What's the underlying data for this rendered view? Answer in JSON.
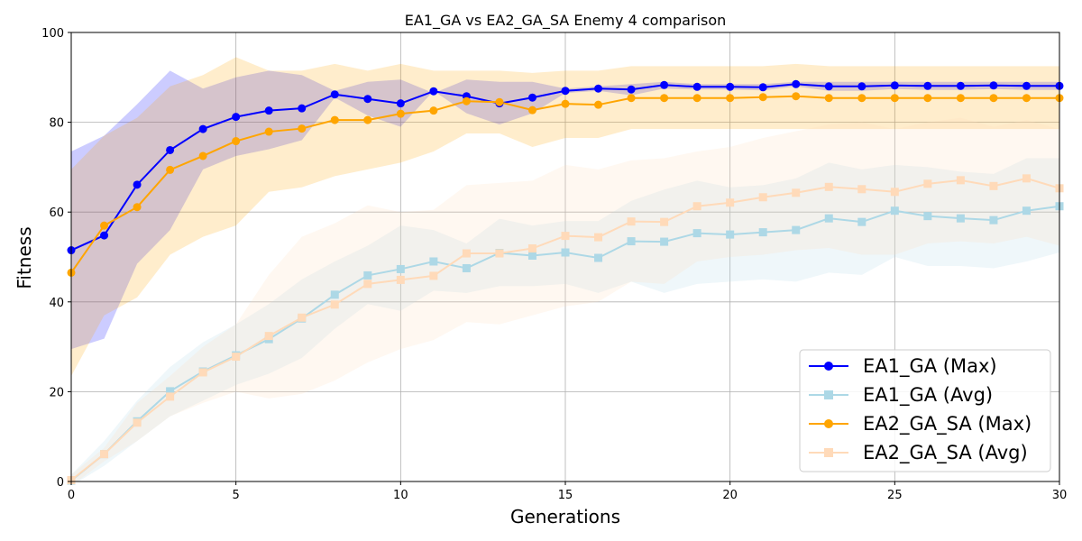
{
  "chart_data": {
    "type": "line",
    "title": "EA1_GA vs EA2_GA_SA Enemy 4 comparison",
    "xlabel": "Generations",
    "ylabel": "Fitness",
    "xlim": [
      0,
      30
    ],
    "ylim": [
      0,
      100
    ],
    "xticks": [
      0,
      5,
      10,
      15,
      20,
      25,
      30
    ],
    "yticks": [
      0,
      20,
      40,
      60,
      80,
      100
    ],
    "grid": true,
    "legend_position": "bottom-right",
    "x": [
      0,
      1,
      2,
      3,
      4,
      5,
      6,
      7,
      8,
      9,
      10,
      11,
      12,
      13,
      14,
      15,
      16,
      17,
      18,
      19,
      20,
      21,
      22,
      23,
      24,
      25,
      26,
      27,
      28,
      29,
      30
    ],
    "series": [
      {
        "name": "EA1_GA (Max)",
        "color": "#0000ff",
        "marker": "circle",
        "values": [
          51.5,
          54.8,
          66.1,
          73.8,
          78.5,
          81.2,
          82.6,
          83.1,
          86.2,
          85.2,
          84.2,
          86.9,
          85.8,
          84.2,
          85.5,
          87.0,
          87.5,
          87.3,
          88.3,
          87.9,
          87.9,
          87.8,
          88.5,
          88.0,
          88.0,
          88.2,
          88.1,
          88.1,
          88.2,
          88.1,
          88.1
        ],
        "band_upper": [
          73.5,
          77.0,
          84.0,
          91.5,
          87.5,
          90.0,
          91.5,
          90.5,
          87.0,
          89.0,
          89.5,
          86.5,
          89.5,
          89.0,
          89.0,
          87.5,
          88.0,
          88.5,
          89.0,
          88.5,
          88.5,
          88.5,
          89.0,
          89.0,
          89.0,
          89.0,
          89.0,
          89.0,
          89.0,
          89.0,
          89.0
        ],
        "band_lower": [
          29.5,
          31.8,
          48.5,
          56.0,
          69.5,
          72.5,
          74.0,
          76.0,
          85.5,
          81.5,
          79.0,
          87.0,
          82.0,
          79.5,
          82.0,
          86.5,
          87.0,
          86.0,
          87.5,
          87.3,
          87.3,
          87.1,
          88.0,
          87.0,
          87.0,
          87.4,
          87.2,
          87.2,
          87.4,
          87.2,
          87.2
        ],
        "band_color": "#0000ff",
        "band_opacity": 0.2
      },
      {
        "name": "EA1_GA (Avg)",
        "color": "#add8e6",
        "marker": "square",
        "values": [
          0.2,
          6.1,
          13.4,
          20.1,
          24.5,
          28.1,
          31.7,
          36.3,
          41.6,
          45.9,
          47.3,
          49.0,
          47.5,
          50.9,
          50.3,
          51.0,
          49.8,
          53.5,
          53.4,
          55.3,
          55.0,
          55.5,
          56.0,
          58.6,
          57.8,
          60.3,
          59.1,
          58.6,
          58.2,
          60.3,
          61.3
        ],
        "band_upper": [
          1.5,
          9.0,
          18.0,
          25.5,
          31.0,
          35.0,
          39.5,
          45.0,
          49.0,
          52.5,
          57.0,
          56.0,
          53.0,
          58.5,
          57.0,
          58.0,
          58.0,
          62.5,
          65.0,
          67.0,
          65.5,
          66.0,
          67.5,
          71.0,
          69.5,
          70.5,
          70.0,
          69.0,
          68.5,
          72.0,
          72.0
        ],
        "band_lower": [
          -1.0,
          3.5,
          9.0,
          14.5,
          18.0,
          21.5,
          24.0,
          27.5,
          34.0,
          39.5,
          38.0,
          42.5,
          42.0,
          43.5,
          43.5,
          44.0,
          42.0,
          44.5,
          42.0,
          44.0,
          44.5,
          45.0,
          44.5,
          46.5,
          46.0,
          50.0,
          48.0,
          48.0,
          47.5,
          49.0,
          51.0
        ],
        "band_color": "#add8e6",
        "band_opacity": 0.2
      },
      {
        "name": "EA2_GA_SA (Max)",
        "color": "#ffa500",
        "marker": "circle",
        "values": [
          46.5,
          57.0,
          61.1,
          69.4,
          72.5,
          75.8,
          77.9,
          78.6,
          80.5,
          80.5,
          81.9,
          82.6,
          84.7,
          84.5,
          82.7,
          84.1,
          83.9,
          85.4,
          85.4,
          85.4,
          85.4,
          85.6,
          85.8,
          85.4,
          85.4,
          85.4,
          85.4,
          85.4,
          85.4,
          85.4,
          85.4
        ],
        "band_upper": [
          69.5,
          77.0,
          81.0,
          88.0,
          90.5,
          94.5,
          91.5,
          91.5,
          93.0,
          91.5,
          93.0,
          91.5,
          91.5,
          91.5,
          91.0,
          91.5,
          91.5,
          92.5,
          92.5,
          92.5,
          92.5,
          92.5,
          93.0,
          92.5,
          92.5,
          92.5,
          92.5,
          92.5,
          92.5,
          92.5,
          92.5
        ],
        "band_lower": [
          23.5,
          37.0,
          41.0,
          50.5,
          54.5,
          57.0,
          64.5,
          65.5,
          68.0,
          69.5,
          71.0,
          73.5,
          77.5,
          77.5,
          74.5,
          76.5,
          76.5,
          78.5,
          78.5,
          78.5,
          78.5,
          78.5,
          78.5,
          78.5,
          78.5,
          78.5,
          78.5,
          78.5,
          78.5,
          78.5,
          78.5
        ],
        "band_color": "#ffa500",
        "band_opacity": 0.2
      },
      {
        "name": "EA2_GA_SA (Avg)",
        "color": "#ffdab9",
        "marker": "square",
        "values": [
          0.3,
          6.1,
          13.1,
          18.9,
          24.3,
          27.8,
          32.4,
          36.5,
          39.4,
          44.0,
          44.9,
          45.8,
          50.8,
          50.8,
          51.9,
          54.7,
          54.4,
          57.9,
          57.8,
          61.3,
          62.1,
          63.3,
          64.3,
          65.6,
          65.1,
          64.5,
          66.3,
          67.1,
          65.8,
          67.5,
          65.3
        ],
        "band_upper": [
          1.5,
          7.5,
          17.5,
          23.5,
          30.0,
          35.0,
          46.0,
          54.5,
          57.5,
          61.5,
          60.0,
          60.5,
          66.0,
          66.5,
          67.0,
          70.5,
          69.5,
          71.5,
          72.0,
          73.5,
          74.5,
          76.5,
          78.0,
          79.5,
          80.0,
          78.5,
          80.0,
          81.0,
          79.0,
          80.5,
          78.5
        ],
        "band_lower": [
          -1.0,
          4.5,
          9.0,
          14.5,
          17.5,
          20.0,
          18.5,
          19.5,
          22.5,
          26.5,
          29.5,
          31.5,
          35.5,
          35.0,
          37.0,
          39.0,
          40.0,
          44.5,
          44.0,
          49.0,
          50.0,
          50.5,
          51.5,
          52.0,
          50.5,
          50.5,
          53.0,
          53.5,
          53.0,
          54.5,
          52.5
        ],
        "band_color": "#ffdab9",
        "band_opacity": 0.2
      }
    ]
  }
}
